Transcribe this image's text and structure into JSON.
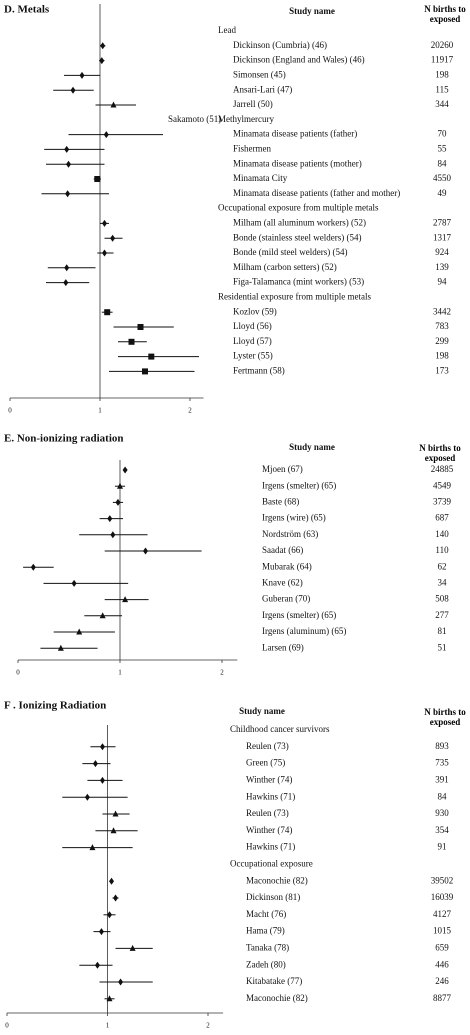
{
  "chart_data": [
    {
      "type": "forest",
      "title": "D. Metals",
      "study_header": "Study name",
      "n_header": "N births to exposed",
      "xlim": [
        0,
        2.15
      ],
      "xticks": [
        0,
        1,
        2
      ],
      "refline": 1,
      "marker": "diamond",
      "rows": [
        {
          "group": "Lead"
        },
        {
          "label": "Dickinson (Cumbria) (46)",
          "n": 20260,
          "value": 1.03,
          "ci": [
            1.0,
            1.06
          ]
        },
        {
          "label": "Dickinson (England and Wales) (46)",
          "n": 11917,
          "value": 1.02,
          "ci": [
            0.99,
            1.05
          ]
        },
        {
          "label": "Simonsen (45)",
          "n": 198,
          "value": 0.8,
          "ci": [
            0.6,
            1.0
          ]
        },
        {
          "label": "Ansari-Lari (47)",
          "n": 115,
          "value": 0.7,
          "ci": [
            0.48,
            0.93
          ]
        },
        {
          "label": "Jarrell (50)",
          "n": 344,
          "value": 1.15,
          "ci": [
            0.95,
            1.4
          ],
          "marker": "triangle"
        },
        {
          "group": "Methylmercury",
          "note": "Sakamoto (51)"
        },
        {
          "label": "Minamata disease patients (father)",
          "n": 70,
          "value": 1.07,
          "ci": [
            0.65,
            1.7
          ]
        },
        {
          "label": "Fishermen",
          "n": 55,
          "value": 0.63,
          "ci": [
            0.38,
            1.05
          ]
        },
        {
          "label": "Minamata disease patients (mother)",
          "n": 84,
          "value": 0.65,
          "ci": [
            0.4,
            1.05
          ]
        },
        {
          "label": "Minamata City",
          "n": 4550,
          "value": 0.97,
          "ci": [
            0.93,
            1.01
          ],
          "marker": "square"
        },
        {
          "label": "Minamata disease patients (father and mother)",
          "n": 49,
          "value": 0.64,
          "ci": [
            0.35,
            1.1
          ]
        },
        {
          "group": "Occupational exposure from multiple metals"
        },
        {
          "label": "Milham (all aluminum workers) (52)",
          "n": 2787,
          "value": 1.05,
          "ci": [
            1.0,
            1.1
          ]
        },
        {
          "label": "Bonde (stainless steel welders) (54)",
          "n": 1317,
          "value": 1.14,
          "ci": [
            1.05,
            1.25
          ]
        },
        {
          "label": "Bonde (mild steel welders) (54)",
          "n": 924,
          "value": 1.05,
          "ci": [
            0.97,
            1.15
          ]
        },
        {
          "label": "Milham (carbon setters) (52)",
          "n": 139,
          "value": 0.63,
          "ci": [
            0.42,
            0.95
          ]
        },
        {
          "label": "Figa-Talamanca (mint workers) (53)",
          "n": 94,
          "value": 0.62,
          "ci": [
            0.4,
            0.88
          ]
        },
        {
          "group": "Residential exposure from multiple metals"
        },
        {
          "label": "Kozlov (59)",
          "n": 3442,
          "value": 1.08,
          "ci": [
            1.02,
            1.14
          ],
          "marker": "square"
        },
        {
          "label": "Lloyd (56)",
          "n": 783,
          "value": 1.45,
          "ci": [
            1.15,
            1.82
          ],
          "marker": "square"
        },
        {
          "label": "Lloyd (57)",
          "n": 299,
          "value": 1.35,
          "ci": [
            1.2,
            1.52
          ],
          "marker": "square"
        },
        {
          "label": "Lyster (55)",
          "n": 198,
          "value": 1.57,
          "ci": [
            1.2,
            2.1
          ],
          "marker": "square"
        },
        {
          "label": "Fertmann (58)",
          "n": 173,
          "value": 1.5,
          "ci": [
            1.1,
            2.05
          ],
          "marker": "square"
        }
      ]
    },
    {
      "type": "forest",
      "title": "E. Non-ionizing radiation",
      "study_header": "Study name",
      "n_header": "N births to exposed",
      "xlim": [
        0,
        2.15
      ],
      "xticks": [
        0,
        1,
        2
      ],
      "refline": 1,
      "marker": "diamond",
      "rows": [
        {
          "label": "Mjoen (67)",
          "n": 24885,
          "value": 1.05,
          "ci": [
            1.03,
            1.07
          ]
        },
        {
          "label": "Irgens (smelter) (65)",
          "n": 4549,
          "value": 1.0,
          "ci": [
            0.95,
            1.05
          ],
          "marker": "triangle"
        },
        {
          "label": "Baste (68)",
          "n": 3739,
          "value": 0.98,
          "ci": [
            0.93,
            1.03
          ]
        },
        {
          "label": "Irgens (wire) (65)",
          "n": 687,
          "value": 0.9,
          "ci": [
            0.8,
            1.03
          ]
        },
        {
          "label": "Nordström (63)",
          "n": 140,
          "value": 0.93,
          "ci": [
            0.6,
            1.27
          ]
        },
        {
          "label": "Saadat (66)",
          "n": 110,
          "value": 1.25,
          "ci": [
            0.85,
            1.8
          ]
        },
        {
          "label": "Mubarak (64)",
          "n": 62,
          "value": 0.15,
          "ci": [
            0.05,
            0.35
          ]
        },
        {
          "label": "Knave (62)",
          "n": 34,
          "value": 0.55,
          "ci": [
            0.25,
            1.08
          ]
        },
        {
          "label": "Guberan (70)",
          "n": 508,
          "value": 1.05,
          "ci": [
            0.85,
            1.28
          ],
          "marker": "triangle"
        },
        {
          "label": "Irgens (smelter) (65)",
          "n": 277,
          "value": 0.83,
          "ci": [
            0.65,
            1.02
          ],
          "marker": "triangle"
        },
        {
          "label": "Irgens (aluminum) (65)",
          "n": 81,
          "value": 0.6,
          "ci": [
            0.35,
            0.95
          ],
          "marker": "triangle"
        },
        {
          "label": "Larsen (69)",
          "n": 51,
          "value": 0.42,
          "ci": [
            0.22,
            0.78
          ],
          "marker": "triangle"
        }
      ]
    },
    {
      "type": "forest",
      "title": "F . Ionizing Radiation",
      "study_header": "Study name",
      "n_header": "N births to exposed",
      "xlim": [
        0,
        2.15
      ],
      "xticks": [
        0,
        1,
        2
      ],
      "refline": 1,
      "marker": "diamond",
      "rows": [
        {
          "group": "Childhood cancer survivors"
        },
        {
          "label": "Reulen (73)",
          "n": 893,
          "value": 0.95,
          "ci": [
            0.83,
            1.08
          ]
        },
        {
          "label": "Green (75)",
          "n": 735,
          "value": 0.88,
          "ci": [
            0.75,
            1.03
          ]
        },
        {
          "label": "Winther (74)",
          "n": 391,
          "value": 0.95,
          "ci": [
            0.8,
            1.15
          ]
        },
        {
          "label": "Hawkins (71)",
          "n": 84,
          "value": 0.8,
          "ci": [
            0.55,
            1.2
          ]
        },
        {
          "label": "Reulen (73)",
          "n": 930,
          "value": 1.08,
          "ci": [
            0.95,
            1.22
          ],
          "marker": "triangle"
        },
        {
          "label": "Winther (74)",
          "n": 354,
          "value": 1.06,
          "ci": [
            0.88,
            1.3
          ],
          "marker": "triangle"
        },
        {
          "label": "Hawkins (71)",
          "n": 91,
          "value": 0.85,
          "ci": [
            0.55,
            1.25
          ],
          "marker": "triangle"
        },
        {
          "group": "Occupational exposure"
        },
        {
          "label": "Maconochie (82)",
          "n": 39502,
          "value": 1.04,
          "ci": [
            1.02,
            1.06
          ]
        },
        {
          "label": "Dickinson (81)",
          "n": 16039,
          "value": 1.08,
          "ci": [
            1.05,
            1.11
          ]
        },
        {
          "label": "Macht (76)",
          "n": 4127,
          "value": 1.02,
          "ci": [
            0.96,
            1.08
          ]
        },
        {
          "label": "Hama (79)",
          "n": 1015,
          "value": 0.94,
          "ci": [
            0.86,
            1.03
          ]
        },
        {
          "label": "Tanaka (78)",
          "n": 659,
          "value": 1.25,
          "ci": [
            1.08,
            1.45
          ],
          "marker": "triangle"
        },
        {
          "label": "Zadeh (80)",
          "n": 446,
          "value": 0.9,
          "ci": [
            0.72,
            1.05
          ]
        },
        {
          "label": "Kitabatake (77)",
          "n": 246,
          "value": 1.13,
          "ci": [
            0.92,
            1.45
          ]
        },
        {
          "label": "Maconochie (82)",
          "n": 8877,
          "value": 1.02,
          "ci": [
            0.97,
            1.07
          ],
          "marker": "triangle"
        }
      ]
    }
  ]
}
